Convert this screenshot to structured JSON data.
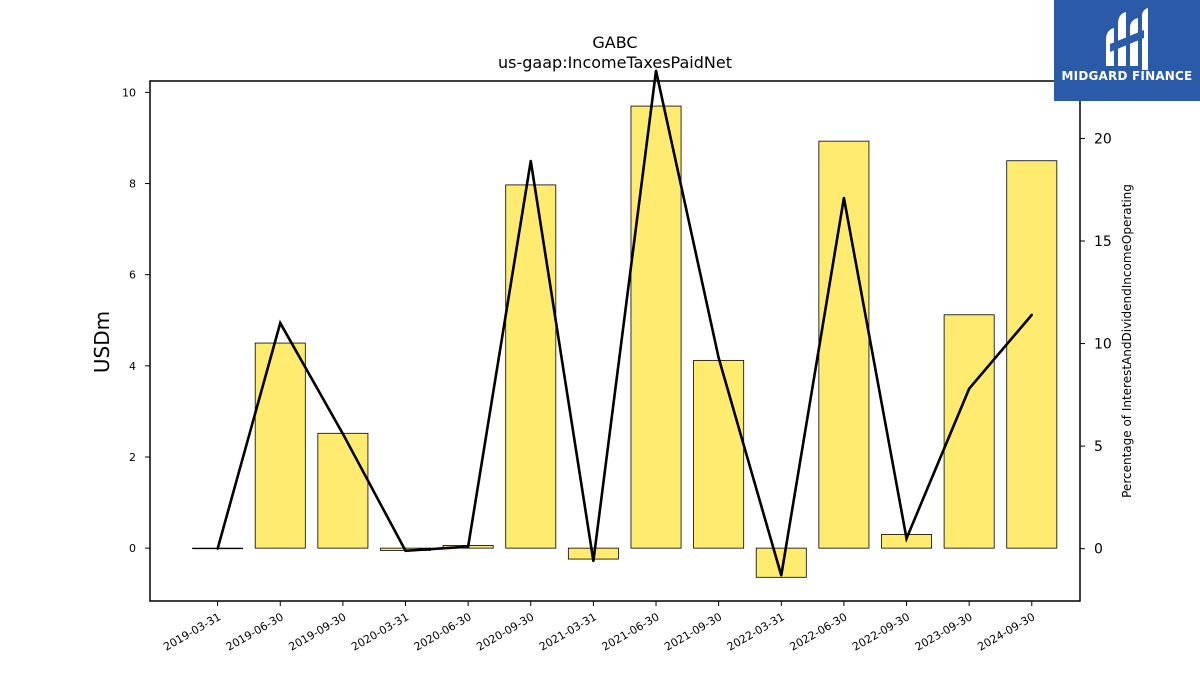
{
  "logo": {
    "text": "MIDGARD FINANCE",
    "bg": "#2b5aa8"
  },
  "chart_data": {
    "type": "bar",
    "title": "GABC",
    "subtitle": "us-gaap:IncomeTaxesPaidNet",
    "ylabel": "USDm",
    "y2label": "Percentage of InterestAndDividendIncomeOperating",
    "categories": [
      "2019-03-31",
      "2019-06-30",
      "2019-09-30",
      "2020-03-31",
      "2020-06-30",
      "2020-09-30",
      "2021-03-31",
      "2021-06-30",
      "2021-09-30",
      "2022-03-31",
      "2022-06-30",
      "2022-09-30",
      "2023-09-30",
      "2024-09-30"
    ],
    "series": [
      {
        "type": "bar",
        "axis": "left",
        "color": "#ffeb70",
        "values": [
          0.0,
          4.5,
          2.52,
          -0.05,
          0.06,
          7.97,
          -0.24,
          9.7,
          4.12,
          -0.64,
          8.93,
          0.3,
          5.12,
          8.5
        ]
      },
      {
        "type": "line",
        "axis": "right",
        "color": "#000000",
        "values": [
          0.0,
          11.0,
          5.6,
          -0.1,
          0.1,
          18.9,
          -0.6,
          23.3,
          9.3,
          -1.3,
          17.1,
          0.5,
          7.8,
          11.4
        ]
      }
    ],
    "ylim": [
      -1.16,
      10.25
    ],
    "y2lim": [
      -2.55,
      22.8
    ],
    "yticks": [
      0,
      2,
      4,
      6,
      8,
      10
    ],
    "y2ticks": [
      0,
      5,
      10,
      15,
      20
    ],
    "grid": false,
    "legend": "none"
  }
}
